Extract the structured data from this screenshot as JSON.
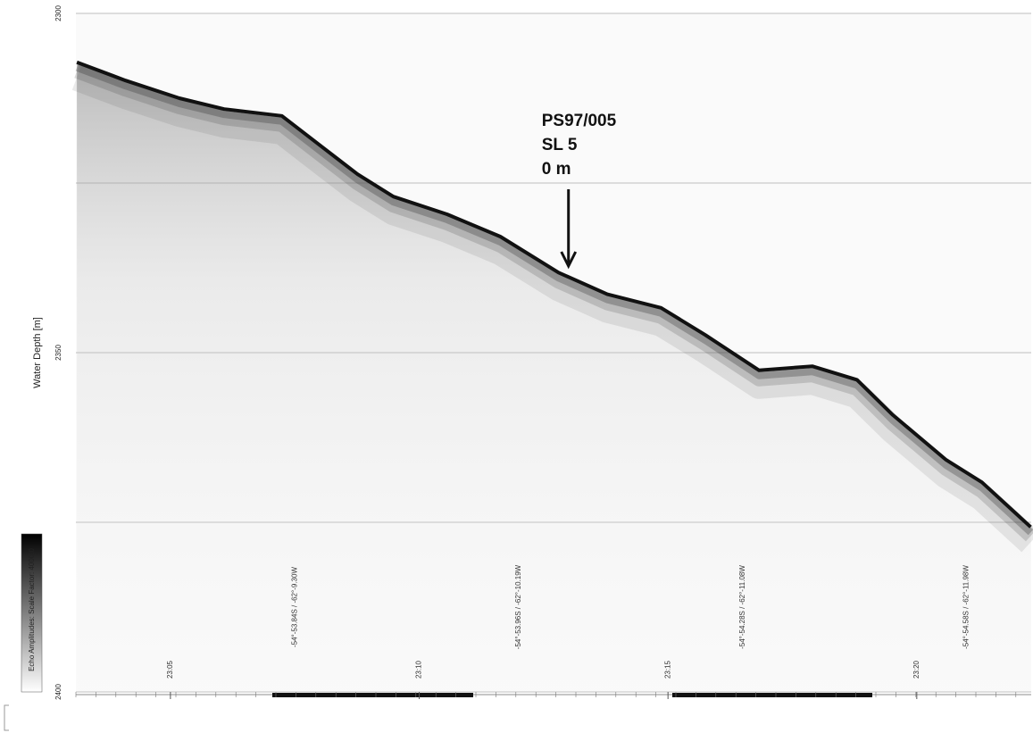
{
  "chart_data": {
    "type": "line",
    "y_label": "Water Depth [m]",
    "ylim": [
      2300,
      2400
    ],
    "yticks": [
      2300,
      2350,
      2400
    ],
    "y_gridlines": [
      2300,
      2325,
      2350,
      2375,
      2400
    ],
    "y_inverted": true,
    "xlim": [
      3.1,
      22.3
    ],
    "xticks": [
      {
        "value": 5,
        "label": "23:05"
      },
      {
        "value": 10,
        "label": "23:10"
      },
      {
        "value": 15,
        "label": "23:15"
      },
      {
        "value": 20,
        "label": "23:20"
      }
    ],
    "position_labels": [
      {
        "x": 7.5,
        "label": "-54°-53.84S / -62°-9.30W"
      },
      {
        "x": 12,
        "label": "-54°-53.96S / -62°-10.19W"
      },
      {
        "x": 16.5,
        "label": "-54°-54.28S / -62°-11.08W"
      },
      {
        "x": 21,
        "label": "-54°-54.58S / -62°-11.98W"
      }
    ],
    "colorbar_label": "Echo Amplitudes: Scale Factor: 4000.0",
    "annotation": {
      "lines": [
        "PS97/005",
        "SL 5",
        "0 m"
      ],
      "x": 13.0,
      "y": 2337.5
    },
    "series": [
      {
        "name": "Seafloor",
        "color": "#111111",
        "x": [
          3.12,
          4.1,
          5.18,
          6.08,
          7.24,
          8.05,
          8.76,
          9.48,
          10.56,
          11.63,
          12.8,
          13.78,
          14.86,
          15.75,
          16.83,
          17.9,
          18.8,
          19.52,
          20.59,
          21.31,
          22.29
        ],
        "values": [
          2307.2,
          2309.9,
          2312.5,
          2314.1,
          2315.1,
          2319.7,
          2323.7,
          2327,
          2329.6,
          2332.9,
          2338.2,
          2341.4,
          2343.4,
          2347.4,
          2352.6,
          2352,
          2354,
          2359.2,
          2365.8,
          2369.1,
          2375.7
        ]
      }
    ]
  }
}
